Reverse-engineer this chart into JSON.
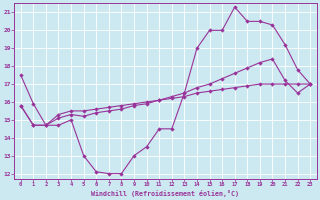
{
  "xlabel": "Windchill (Refroidissement éolien,°C)",
  "bg_color": "#cce8f0",
  "line_color": "#993399",
  "grid_color": "#ffffff",
  "xlim": [
    -0.5,
    23.5
  ],
  "ylim": [
    11.7,
    21.5
  ],
  "yticks": [
    12,
    13,
    14,
    15,
    16,
    17,
    18,
    19,
    20,
    21
  ],
  "xticks": [
    0,
    1,
    2,
    3,
    4,
    5,
    6,
    7,
    8,
    9,
    10,
    11,
    12,
    13,
    14,
    15,
    16,
    17,
    18,
    19,
    20,
    21,
    22,
    23
  ],
  "line1_x": [
    0,
    1,
    2,
    3,
    4,
    5,
    6,
    7,
    8,
    9,
    10,
    11,
    12,
    13,
    14,
    15,
    16,
    17,
    18,
    19,
    20,
    21,
    22,
    23
  ],
  "line1_y": [
    17.5,
    15.9,
    14.7,
    14.7,
    15.0,
    13.0,
    12.1,
    12.0,
    12.0,
    13.0,
    13.5,
    14.5,
    14.5,
    16.5,
    19.0,
    20.0,
    20.0,
    21.3,
    20.5,
    20.5,
    20.3,
    19.2,
    17.8,
    17.0
  ],
  "line2_x": [
    0,
    1,
    2,
    3,
    4,
    5,
    6,
    7,
    8,
    9,
    10,
    11,
    12,
    13,
    14,
    15,
    16,
    17,
    18,
    19,
    20,
    21,
    22,
    23
  ],
  "line2_y": [
    15.8,
    14.7,
    14.7,
    15.3,
    15.5,
    15.5,
    15.6,
    15.7,
    15.8,
    15.9,
    16.0,
    16.1,
    16.2,
    16.3,
    16.5,
    16.6,
    16.7,
    16.8,
    16.9,
    17.0,
    17.0,
    17.0,
    17.0,
    17.0
  ],
  "line3_x": [
    0,
    1,
    2,
    3,
    4,
    5,
    6,
    7,
    8,
    9,
    10,
    11,
    12,
    13,
    14,
    15,
    16,
    17,
    18,
    19,
    20,
    21,
    22,
    23
  ],
  "line3_y": [
    15.8,
    14.7,
    14.7,
    15.1,
    15.3,
    15.2,
    15.4,
    15.5,
    15.6,
    15.8,
    15.9,
    16.1,
    16.3,
    16.5,
    16.8,
    17.0,
    17.3,
    17.6,
    17.9,
    18.2,
    18.4,
    17.2,
    16.5,
    17.0
  ]
}
